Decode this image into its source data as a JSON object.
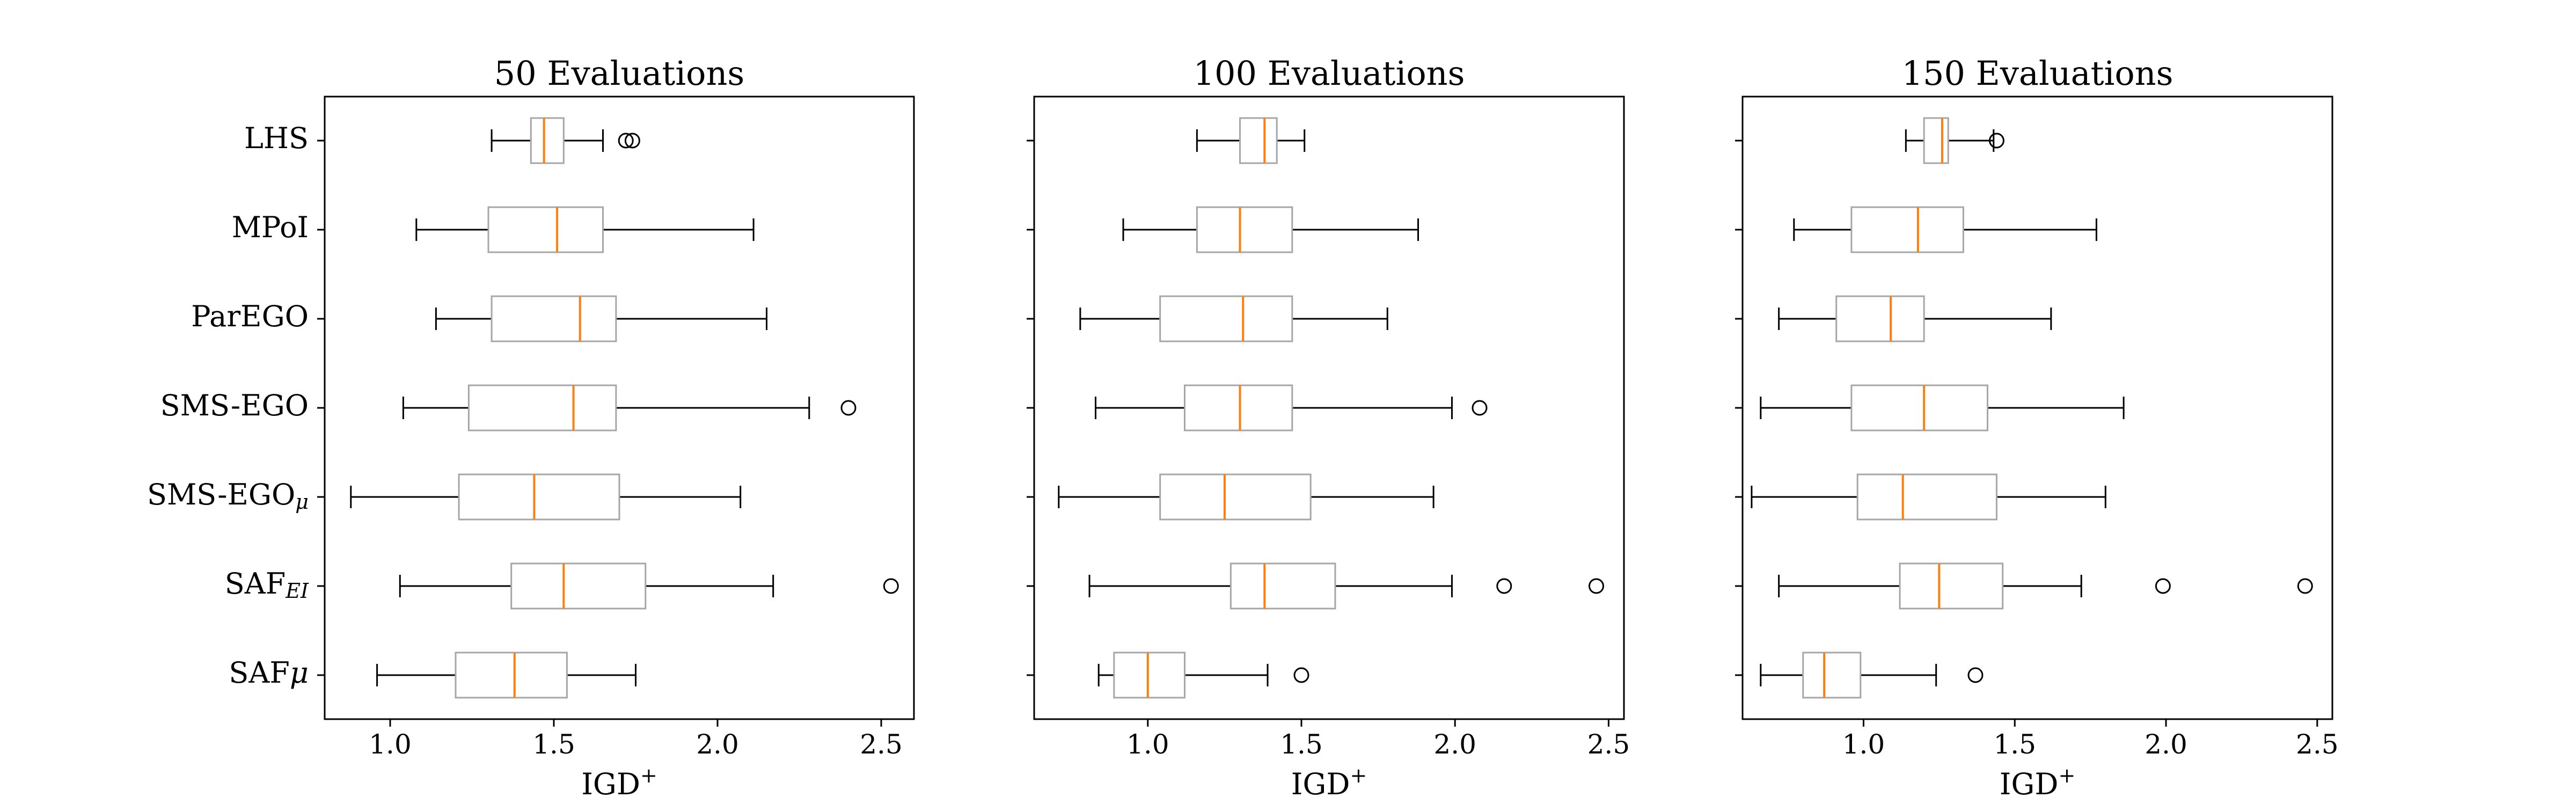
{
  "chart_data": [
    {
      "type": "box",
      "title": "50 Evaluations",
      "xlabel": "IGD",
      "xlabel_sup": "+",
      "xlim": [
        0.8,
        2.6
      ],
      "xticks": [
        "1.0",
        "1.5",
        "2.0",
        "2.5"
      ],
      "categories": [
        "LHS",
        "MPoI",
        "ParEGO",
        "SMS-EGO",
        "SMS-EGO_μ",
        "SAF_EI",
        "SAFμ"
      ],
      "boxes": [
        {
          "category": "LHS",
          "whislo": 1.31,
          "q1": 1.43,
          "med": 1.47,
          "q3": 1.53,
          "whishi": 1.65,
          "fliers": [
            1.72,
            1.74
          ]
        },
        {
          "category": "MPoI",
          "whislo": 1.08,
          "q1": 1.3,
          "med": 1.51,
          "q3": 1.65,
          "whishi": 2.11,
          "fliers": []
        },
        {
          "category": "ParEGO",
          "whislo": 1.14,
          "q1": 1.31,
          "med": 1.58,
          "q3": 1.69,
          "whishi": 2.15,
          "fliers": []
        },
        {
          "category": "SMS-EGO",
          "whislo": 1.04,
          "q1": 1.24,
          "med": 1.56,
          "q3": 1.69,
          "whishi": 2.28,
          "fliers": [
            2.4
          ]
        },
        {
          "category": "SMS-EGO_μ",
          "whislo": 0.88,
          "q1": 1.21,
          "med": 1.44,
          "q3": 1.7,
          "whishi": 2.07,
          "fliers": []
        },
        {
          "category": "SAF_EI",
          "whislo": 1.03,
          "q1": 1.37,
          "med": 1.53,
          "q3": 1.78,
          "whishi": 2.17,
          "fliers": [
            2.53
          ]
        },
        {
          "category": "SAFμ",
          "whislo": 0.96,
          "q1": 1.2,
          "med": 1.38,
          "q3": 1.54,
          "whishi": 1.75,
          "fliers": []
        }
      ]
    },
    {
      "type": "box",
      "title": "100 Evaluations",
      "xlabel": "IGD",
      "xlabel_sup": "+",
      "xlim": [
        0.63,
        2.55
      ],
      "xticks": [
        "1.0",
        "1.5",
        "2.0",
        "2.5"
      ],
      "categories": [
        "LHS",
        "MPoI",
        "ParEGO",
        "SMS-EGO",
        "SMS-EGO_μ",
        "SAF_EI",
        "SAFμ"
      ],
      "boxes": [
        {
          "category": "LHS",
          "whislo": 1.16,
          "q1": 1.3,
          "med": 1.38,
          "q3": 1.42,
          "whishi": 1.51,
          "fliers": []
        },
        {
          "category": "MPoI",
          "whislo": 0.92,
          "q1": 1.16,
          "med": 1.3,
          "q3": 1.47,
          "whishi": 1.88,
          "fliers": []
        },
        {
          "category": "ParEGO",
          "whislo": 0.78,
          "q1": 1.04,
          "med": 1.31,
          "q3": 1.47,
          "whishi": 1.78,
          "fliers": []
        },
        {
          "category": "SMS-EGO",
          "whislo": 0.83,
          "q1": 1.12,
          "med": 1.3,
          "q3": 1.47,
          "whishi": 1.99,
          "fliers": [
            2.08
          ]
        },
        {
          "category": "SMS-EGO_μ",
          "whislo": 0.71,
          "q1": 1.04,
          "med": 1.25,
          "q3": 1.53,
          "whishi": 1.93,
          "fliers": []
        },
        {
          "category": "SAF_EI",
          "whislo": 0.81,
          "q1": 1.27,
          "med": 1.38,
          "q3": 1.61,
          "whishi": 1.99,
          "fliers": [
            2.16,
            2.46
          ]
        },
        {
          "category": "SAFμ",
          "whislo": 0.84,
          "q1": 0.89,
          "med": 1.0,
          "q3": 1.12,
          "whishi": 1.39,
          "fliers": [
            1.5
          ]
        }
      ]
    },
    {
      "type": "box",
      "title": "150 Evaluations",
      "xlabel": "IGD",
      "xlabel_sup": "+",
      "xlim": [
        0.6,
        2.55
      ],
      "xticks": [
        "1.0",
        "1.5",
        "2.0",
        "2.5"
      ],
      "categories": [
        "LHS",
        "MPoI",
        "ParEGO",
        "SMS-EGO",
        "SMS-EGO_μ",
        "SAF_EI",
        "SAFμ"
      ],
      "boxes": [
        {
          "category": "LHS",
          "whislo": 1.14,
          "q1": 1.2,
          "med": 1.26,
          "q3": 1.28,
          "whishi": 1.43,
          "fliers": [
            1.44
          ]
        },
        {
          "category": "MPoI",
          "whislo": 0.77,
          "q1": 0.96,
          "med": 1.18,
          "q3": 1.33,
          "whishi": 1.77,
          "fliers": []
        },
        {
          "category": "ParEGO",
          "whislo": 0.72,
          "q1": 0.91,
          "med": 1.09,
          "q3": 1.2,
          "whishi": 1.62,
          "fliers": []
        },
        {
          "category": "SMS-EGO",
          "whislo": 0.66,
          "q1": 0.96,
          "med": 1.2,
          "q3": 1.41,
          "whishi": 1.86,
          "fliers": []
        },
        {
          "category": "SMS-EGO_μ",
          "whislo": 0.63,
          "q1": 0.98,
          "med": 1.13,
          "q3": 1.44,
          "whishi": 1.8,
          "fliers": []
        },
        {
          "category": "SAF_EI",
          "whislo": 0.72,
          "q1": 1.12,
          "med": 1.25,
          "q3": 1.46,
          "whishi": 1.72,
          "fliers": [
            1.99,
            2.46
          ]
        },
        {
          "category": "SAFμ",
          "whislo": 0.66,
          "q1": 0.8,
          "med": 0.87,
          "q3": 0.99,
          "whishi": 1.24,
          "fliers": [
            1.37
          ]
        }
      ]
    }
  ],
  "colors": {
    "box": "#a6a6a6",
    "median": "#ff7f0e",
    "whisker": "#000000",
    "axes": "#000000"
  }
}
